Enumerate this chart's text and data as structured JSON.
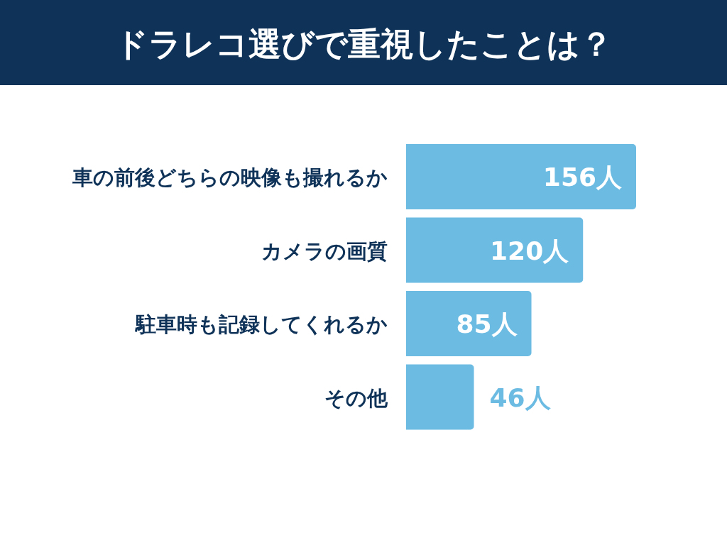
{
  "chart_data": {
    "type": "bar",
    "orientation": "horizontal",
    "title": "ドラレコ選びで重視したことは？",
    "categories": [
      "車の前後どちらの映像も撮れるか",
      "カメラの画質",
      "駐車時も記録してくれるか",
      "その他"
    ],
    "values": [
      156,
      120,
      85,
      46
    ],
    "color": "#6bbbe3",
    "value_labels": [
      "156人",
      "120人",
      "85人",
      "46人"
    ]
  }
}
